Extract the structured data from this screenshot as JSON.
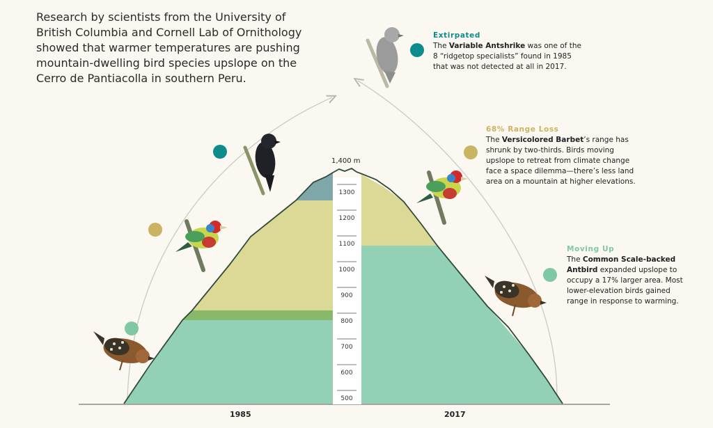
{
  "intro": "Research by scientists from the University of British Columbia and Cornell Lab of Ornithology showed that warmer temperatures are pushing mountain-dwelling bird species upslope on the Cerro de Pantiacolla in southern Peru.",
  "annotations": {
    "extirpated": {
      "heading": "Extirpated",
      "pre": "The ",
      "bold": "Variable Antshrike",
      "post": " was one of the 8 “ridgetop specialists” found in 1985 that was not detected at all in 2017.",
      "color": "#0e8c8c"
    },
    "range_loss": {
      "heading": "68% Range Loss",
      "pre": "The ",
      "bold": "Versicolored Barbet",
      "post": "’s range has shrunk by two-thirds. Birds moving upslope to retreat from climate change face a space dilemma—there’s less land area on a mountain at higher elevations.",
      "color": "#c9b463"
    },
    "moving_up": {
      "heading": "Moving Up",
      "pre": "The ",
      "bold": "Common Scale-backed Antbird",
      "post": " expanded upslope to occupy a 17% larger area. Most lower-elevation birds gained range in response to warming.",
      "color": "#7fc8a3"
    }
  },
  "elevation": {
    "peak_label": "1,400 m",
    "ticks": [
      "1300",
      "1200",
      "1100",
      "1000",
      "900",
      "800",
      "700",
      "600",
      "500"
    ]
  },
  "years": {
    "left": "1985",
    "right": "2017"
  },
  "colors": {
    "teal": "#0e8c8c",
    "gold": "#c9b463",
    "mint": "#7fc8a3",
    "band_mint": "#93d1b6",
    "band_olive": "#dcd996",
    "band_green": "#88b96b",
    "band_slate": "#7fa6a8",
    "outline": "#2f4a3a"
  },
  "birds": [
    "variable-antshrike",
    "versicolored-barbet",
    "scale-backed-antbird"
  ]
}
